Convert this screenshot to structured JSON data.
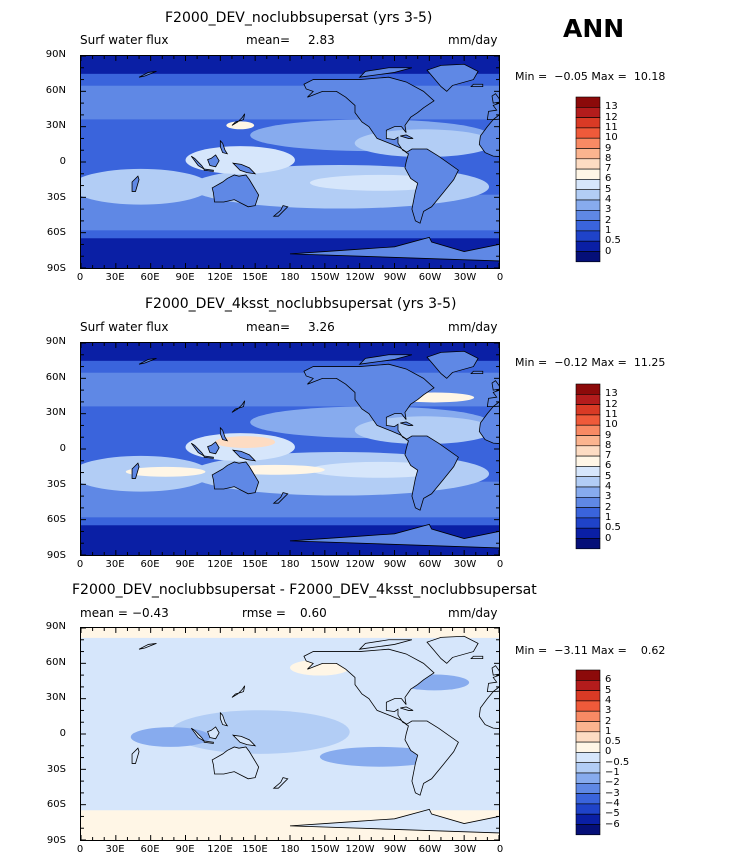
{
  "season": "ANN",
  "panels": [
    {
      "title": "F2000_DEV_noclubbsupersat (yrs 3-5)",
      "left_label": "Surf water flux",
      "mid_label": "mean=",
      "mid_value": "2.83",
      "units": "mm/day",
      "minmax": "Min =  −0.05 Max =  10.18",
      "cbar_labels": [
        "13",
        "12",
        "11",
        "10",
        "9",
        "8",
        "7",
        "6",
        "5",
        "4",
        "3",
        "2",
        "1",
        "0.5",
        "0"
      ],
      "cbar_colors": [
        "#8c0a0a",
        "#b31c1c",
        "#d93a25",
        "#ef5a3a",
        "#f88a64",
        "#fbb48f",
        "#fddcc3",
        "#fff6e6",
        "#d6e6fb",
        "#b2cdf5",
        "#87abee",
        "#5f88e5",
        "#3a64dc",
        "#1f43c9",
        "#0a1fa5",
        "#050f78"
      ]
    },
    {
      "title": "F2000_DEV_4ksst_noclubbsupersat (yrs 3-5)",
      "left_label": "Surf water flux",
      "mid_label": "mean=",
      "mid_value": "3.26",
      "units": "mm/day",
      "minmax": "Min =  −0.12 Max =  11.25",
      "cbar_labels": [
        "13",
        "12",
        "11",
        "10",
        "9",
        "8",
        "7",
        "6",
        "5",
        "4",
        "3",
        "2",
        "1",
        "0.5",
        "0"
      ],
      "cbar_colors": [
        "#8c0a0a",
        "#b31c1c",
        "#d93a25",
        "#ef5a3a",
        "#f88a64",
        "#fbb48f",
        "#fddcc3",
        "#fff6e6",
        "#d6e6fb",
        "#b2cdf5",
        "#87abee",
        "#5f88e5",
        "#3a64dc",
        "#1f43c9",
        "#0a1fa5",
        "#050f78"
      ]
    },
    {
      "title": "F2000_DEV_noclubbsupersat - F2000_DEV_4ksst_noclubbsupersat",
      "left_label": "mean =",
      "left_value": "−0.43",
      "mid_label": "rmse =",
      "mid_value": "0.60",
      "units": "mm/day",
      "minmax": "Min =  −3.11 Max =    0.62",
      "cbar_labels": [
        "6",
        "5",
        "4",
        "3",
        "2",
        "1",
        "0.5",
        "0",
        "−0.5",
        "−1",
        "−2",
        "−3",
        "−4",
        "−5",
        "−6"
      ],
      "cbar_colors": [
        "#8c0a0a",
        "#b31c1c",
        "#d93a25",
        "#ef5a3a",
        "#f88a64",
        "#fbb48f",
        "#fddcc3",
        "#fff6e6",
        "#d6e6fb",
        "#b2cdf5",
        "#87abee",
        "#5f88e5",
        "#3a64dc",
        "#1f43c9",
        "#0a1fa5",
        "#050f78"
      ]
    }
  ],
  "y_ticks": [
    "90N",
    "60N",
    "30N",
    "0",
    "30S",
    "60S",
    "90S"
  ],
  "x_ticks": [
    "0",
    "30E",
    "60E",
    "90E",
    "120E",
    "150E",
    "180",
    "150W",
    "120W",
    "90W",
    "60W",
    "30W",
    "0"
  ],
  "chart_data": [
    {
      "type": "heatmap",
      "title": "F2000_DEV_noclubbsupersat (yrs 3-5)",
      "variable": "Surf water flux",
      "units": "mm/day",
      "mean": 2.83,
      "min": -0.05,
      "max": 10.18,
      "xlabel": "",
      "ylabel": "",
      "x_ticks": [
        "0",
        "30E",
        "60E",
        "90E",
        "120E",
        "150E",
        "180",
        "150W",
        "120W",
        "90W",
        "60W",
        "30W",
        "0"
      ],
      "y_ticks": [
        "90N",
        "60N",
        "30N",
        "0",
        "30S",
        "60S",
        "90S"
      ],
      "contour_levels": [
        0,
        0.5,
        1,
        2,
        3,
        4,
        5,
        6,
        7,
        8,
        9,
        10,
        11,
        12,
        13
      ]
    },
    {
      "type": "heatmap",
      "title": "F2000_DEV_4ksst_noclubbsupersat (yrs 3-5)",
      "variable": "Surf water flux",
      "units": "mm/day",
      "mean": 3.26,
      "min": -0.12,
      "max": 11.25,
      "xlabel": "",
      "ylabel": "",
      "x_ticks": [
        "0",
        "30E",
        "60E",
        "90E",
        "120E",
        "150E",
        "180",
        "150W",
        "120W",
        "90W",
        "60W",
        "30W",
        "0"
      ],
      "y_ticks": [
        "90N",
        "60N",
        "30N",
        "0",
        "30S",
        "60S",
        "90S"
      ],
      "contour_levels": [
        0,
        0.5,
        1,
        2,
        3,
        4,
        5,
        6,
        7,
        8,
        9,
        10,
        11,
        12,
        13
      ]
    },
    {
      "type": "heatmap",
      "title": "F2000_DEV_noclubbsupersat - F2000_DEV_4ksst_noclubbsupersat",
      "units": "mm/day",
      "mean": -0.43,
      "rmse": 0.6,
      "min": -3.11,
      "max": 0.62,
      "xlabel": "",
      "ylabel": "",
      "x_ticks": [
        "0",
        "30E",
        "60E",
        "90E",
        "120E",
        "150E",
        "180",
        "150W",
        "120W",
        "90W",
        "60W",
        "30W",
        "0"
      ],
      "y_ticks": [
        "90N",
        "60N",
        "30N",
        "0",
        "30S",
        "60S",
        "90S"
      ],
      "contour_levels": [
        -6,
        -5,
        -4,
        -3,
        -2,
        -1,
        -0.5,
        0,
        0.5,
        1,
        2,
        3,
        4,
        5,
        6
      ]
    }
  ]
}
